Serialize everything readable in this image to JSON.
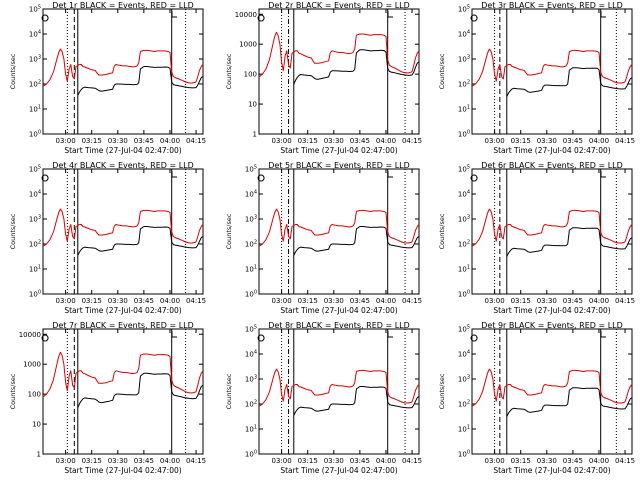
{
  "figure": {
    "xlabel": "Start Time (27-Jul-04 02:47:00)",
    "ylabel": "Counts/sec",
    "colors": {
      "events": "#000000",
      "lld": "#dd0000",
      "axes": "#000000",
      "background": "#ffffff"
    }
  },
  "chart_data": [
    {
      "type": "line",
      "title": "Det 1r BLACK = Events, RED = LLD",
      "xlabel": "Start Time (27-Jul-04 02:47:00)",
      "ylabel": "Counts/sec",
      "yscale": "log",
      "ylim": [
        1,
        100000
      ],
      "xlim_minutes_after_start": [
        0,
        92
      ],
      "yticks": [
        {
          "value": 1,
          "label": "10^0"
        },
        {
          "value": 10,
          "label": "10^1"
        },
        {
          "value": 100,
          "label": "10^2"
        },
        {
          "value": 1000,
          "label": "10^3"
        },
        {
          "value": 10000,
          "label": "10^4"
        },
        {
          "value": 100000,
          "label": "10^5"
        }
      ],
      "xticks": [
        {
          "value": 13,
          "label": "03:00"
        },
        {
          "value": 28,
          "label": "03:15"
        },
        {
          "value": 43,
          "label": "03:30"
        },
        {
          "value": 58,
          "label": "03:45"
        },
        {
          "value": 73,
          "label": "04:00"
        },
        {
          "value": 88,
          "label": "04:15"
        }
      ],
      "markers": [
        {
          "minute": 14,
          "style": "dotted"
        },
        {
          "minute": 18,
          "style": "dashed"
        },
        {
          "minute": 20,
          "style": "solid"
        },
        {
          "minute": 74,
          "style": "solid"
        },
        {
          "minute": 82,
          "style": "dotted"
        }
      ],
      "event_scale": 1
    },
    {
      "type": "line",
      "title": "Det 2r BLACK = Events, RED = LLD",
      "xlabel": "Start Time (27-Jul-04 02:47:00)",
      "ylabel": "Counts/sec",
      "yscale": "log",
      "ylim": [
        1,
        15000
      ],
      "xlim_minutes_after_start": [
        0,
        92
      ],
      "yticks": [
        {
          "value": 1,
          "label": "1"
        },
        {
          "value": 10,
          "label": "10"
        },
        {
          "value": 100,
          "label": "100"
        },
        {
          "value": 1000,
          "label": "1000"
        },
        {
          "value": 10000,
          "label": "10000"
        }
      ],
      "xticks": [
        {
          "value": 13,
          "label": "03:00"
        },
        {
          "value": 28,
          "label": "03:15"
        },
        {
          "value": 43,
          "label": "03:30"
        },
        {
          "value": 58,
          "label": "03:45"
        },
        {
          "value": 73,
          "label": "04:00"
        },
        {
          "value": 88,
          "label": "04:15"
        }
      ],
      "markers": [
        {
          "minute": 13,
          "style": "dotted"
        },
        {
          "minute": 17,
          "style": "dashdot"
        },
        {
          "minute": 20,
          "style": "solid"
        },
        {
          "minute": 74,
          "style": "solid"
        },
        {
          "minute": 84,
          "style": "dotted"
        }
      ],
      "event_scale": 1.3
    },
    {
      "type": "line",
      "title": "Det 3r BLACK = Events, RED = LLD",
      "xlabel": "Start Time (27-Jul-04 02:47:00)",
      "ylabel": "Counts/sec",
      "yscale": "log",
      "ylim": [
        1,
        100000
      ],
      "xlim_minutes_after_start": [
        0,
        92
      ],
      "yticks": [
        {
          "value": 1,
          "label": "10^0"
        },
        {
          "value": 10,
          "label": "10^1"
        },
        {
          "value": 100,
          "label": "10^2"
        },
        {
          "value": 1000,
          "label": "10^3"
        },
        {
          "value": 10000,
          "label": "10^4"
        },
        {
          "value": 100000,
          "label": "10^5"
        }
      ],
      "xticks": [
        {
          "value": 13,
          "label": "03:00"
        },
        {
          "value": 28,
          "label": "03:15"
        },
        {
          "value": 43,
          "label": "03:30"
        },
        {
          "value": 58,
          "label": "03:45"
        },
        {
          "value": 73,
          "label": "04:00"
        },
        {
          "value": 88,
          "label": "04:15"
        }
      ],
      "markers": [
        {
          "minute": 13,
          "style": "dotted"
        },
        {
          "minute": 16,
          "style": "dashed"
        },
        {
          "minute": 20,
          "style": "solid"
        },
        {
          "minute": 74,
          "style": "solid"
        },
        {
          "minute": 83,
          "style": "dotted"
        }
      ],
      "event_scale": 0.9
    },
    {
      "type": "line",
      "title": "Det 4r BLACK = Events, RED = LLD",
      "xlabel": "Start Time (27-Jul-04 02:47:00)",
      "ylabel": "Counts/sec",
      "yscale": "log",
      "ylim": [
        1,
        100000
      ],
      "xlim_minutes_after_start": [
        0,
        92
      ],
      "yticks": [
        {
          "value": 1,
          "label": "10^0"
        },
        {
          "value": 10,
          "label": "10^1"
        },
        {
          "value": 100,
          "label": "10^2"
        },
        {
          "value": 1000,
          "label": "10^3"
        },
        {
          "value": 10000,
          "label": "10^4"
        },
        {
          "value": 100000,
          "label": "10^5"
        }
      ],
      "xticks": [
        {
          "value": 13,
          "label": "03:00"
        },
        {
          "value": 28,
          "label": "03:15"
        },
        {
          "value": 43,
          "label": "03:30"
        },
        {
          "value": 58,
          "label": "03:45"
        },
        {
          "value": 73,
          "label": "04:00"
        },
        {
          "value": 88,
          "label": "04:15"
        }
      ],
      "markers": [
        {
          "minute": 14,
          "style": "dotted"
        },
        {
          "minute": 18,
          "style": "dashed"
        },
        {
          "minute": 20,
          "style": "solid"
        },
        {
          "minute": 74,
          "style": "solid"
        },
        {
          "minute": 82,
          "style": "dotted"
        }
      ],
      "event_scale": 1
    },
    {
      "type": "line",
      "title": "Det 5r BLACK = Events, RED = LLD",
      "xlabel": "Start Time (27-Jul-04 02:47:00)",
      "ylabel": "Counts/sec",
      "yscale": "log",
      "ylim": [
        1,
        100000
      ],
      "xlim_minutes_after_start": [
        0,
        92
      ],
      "yticks": [
        {
          "value": 1,
          "label": "10^0"
        },
        {
          "value": 10,
          "label": "10^1"
        },
        {
          "value": 100,
          "label": "10^2"
        },
        {
          "value": 1000,
          "label": "10^3"
        },
        {
          "value": 10000,
          "label": "10^4"
        },
        {
          "value": 100000,
          "label": "10^5"
        }
      ],
      "xticks": [
        {
          "value": 13,
          "label": "03:00"
        },
        {
          "value": 28,
          "label": "03:15"
        },
        {
          "value": 43,
          "label": "03:30"
        },
        {
          "value": 58,
          "label": "03:45"
        },
        {
          "value": 73,
          "label": "04:00"
        },
        {
          "value": 88,
          "label": "04:15"
        }
      ],
      "markers": [
        {
          "minute": 13,
          "style": "dotted"
        },
        {
          "minute": 17,
          "style": "dashdot"
        },
        {
          "minute": 20,
          "style": "solid"
        },
        {
          "minute": 74,
          "style": "solid"
        },
        {
          "minute": 84,
          "style": "dotted"
        }
      ],
      "event_scale": 1
    },
    {
      "type": "line",
      "title": "Det 6r BLACK = Events, RED = LLD",
      "xlabel": "Start Time (27-Jul-04 02:47:00)",
      "ylabel": "Counts/sec",
      "yscale": "log",
      "ylim": [
        1,
        100000
      ],
      "xlim_minutes_after_start": [
        0,
        92
      ],
      "yticks": [
        {
          "value": 1,
          "label": "10^0"
        },
        {
          "value": 10,
          "label": "10^1"
        },
        {
          "value": 100,
          "label": "10^2"
        },
        {
          "value": 1000,
          "label": "10^3"
        },
        {
          "value": 10000,
          "label": "10^4"
        },
        {
          "value": 100000,
          "label": "10^5"
        }
      ],
      "xticks": [
        {
          "value": 13,
          "label": "03:00"
        },
        {
          "value": 28,
          "label": "03:15"
        },
        {
          "value": 43,
          "label": "03:30"
        },
        {
          "value": 58,
          "label": "03:45"
        },
        {
          "value": 73,
          "label": "04:00"
        },
        {
          "value": 88,
          "label": "04:15"
        }
      ],
      "markers": [
        {
          "minute": 13,
          "style": "dotted"
        },
        {
          "minute": 16,
          "style": "dashed"
        },
        {
          "minute": 20,
          "style": "solid"
        },
        {
          "minute": 74,
          "style": "solid"
        },
        {
          "minute": 83,
          "style": "dotted"
        }
      ],
      "event_scale": 0.9
    },
    {
      "type": "line",
      "title": "Det 7r BLACK = Events, RED = LLD",
      "xlabel": "Start Time (27-Jul-04 02:47:00)",
      "ylabel": "Counts/sec",
      "yscale": "log",
      "ylim": [
        1,
        15000
      ],
      "xlim_minutes_after_start": [
        0,
        92
      ],
      "yticks": [
        {
          "value": 1,
          "label": "1"
        },
        {
          "value": 10,
          "label": "10"
        },
        {
          "value": 100,
          "label": "100"
        },
        {
          "value": 1000,
          "label": "1000"
        },
        {
          "value": 10000,
          "label": "10000"
        }
      ],
      "xticks": [
        {
          "value": 13,
          "label": "03:00"
        },
        {
          "value": 28,
          "label": "03:15"
        },
        {
          "value": 43,
          "label": "03:30"
        },
        {
          "value": 58,
          "label": "03:45"
        },
        {
          "value": 73,
          "label": "04:00"
        },
        {
          "value": 88,
          "label": "04:15"
        }
      ],
      "markers": [
        {
          "minute": 14,
          "style": "dotted"
        },
        {
          "minute": 18,
          "style": "dashed"
        },
        {
          "minute": 20,
          "style": "solid"
        },
        {
          "minute": 74,
          "style": "solid"
        },
        {
          "minute": 82,
          "style": "dotted"
        }
      ],
      "event_scale": 1
    },
    {
      "type": "line",
      "title": "Det 8r BLACK = Events, RED = LLD",
      "xlabel": "Start Time (27-Jul-04 02:47:00)",
      "ylabel": "Counts/sec",
      "yscale": "log",
      "ylim": [
        1,
        100000
      ],
      "xlim_minutes_after_start": [
        0,
        92
      ],
      "yticks": [
        {
          "value": 1,
          "label": "10^0"
        },
        {
          "value": 10,
          "label": "10^1"
        },
        {
          "value": 100,
          "label": "10^2"
        },
        {
          "value": 1000,
          "label": "10^3"
        },
        {
          "value": 10000,
          "label": "10^4"
        },
        {
          "value": 100000,
          "label": "10^5"
        }
      ],
      "xticks": [
        {
          "value": 13,
          "label": "03:00"
        },
        {
          "value": 28,
          "label": "03:15"
        },
        {
          "value": 43,
          "label": "03:30"
        },
        {
          "value": 58,
          "label": "03:45"
        },
        {
          "value": 73,
          "label": "04:00"
        },
        {
          "value": 88,
          "label": "04:15"
        }
      ],
      "markers": [
        {
          "minute": 13,
          "style": "dotted"
        },
        {
          "minute": 17,
          "style": "dashdot"
        },
        {
          "minute": 20,
          "style": "solid"
        },
        {
          "minute": 74,
          "style": "solid"
        },
        {
          "minute": 84,
          "style": "dotted"
        }
      ],
      "event_scale": 1
    },
    {
      "type": "line",
      "title": "Det 9r BLACK = Events, RED = LLD",
      "xlabel": "Start Time (27-Jul-04 02:47:00)",
      "ylabel": "Counts/sec",
      "yscale": "log",
      "ylim": [
        1,
        100000
      ],
      "xlim_minutes_after_start": [
        0,
        92
      ],
      "yticks": [
        {
          "value": 1,
          "label": "10^0"
        },
        {
          "value": 10,
          "label": "10^1"
        },
        {
          "value": 100,
          "label": "10^2"
        },
        {
          "value": 1000,
          "label": "10^3"
        },
        {
          "value": 10000,
          "label": "10^4"
        },
        {
          "value": 100000,
          "label": "10^5"
        }
      ],
      "xticks": [
        {
          "value": 13,
          "label": "03:00"
        },
        {
          "value": 28,
          "label": "03:15"
        },
        {
          "value": 43,
          "label": "03:30"
        },
        {
          "value": 58,
          "label": "03:45"
        },
        {
          "value": 73,
          "label": "04:00"
        },
        {
          "value": 88,
          "label": "04:15"
        }
      ],
      "markers": [
        {
          "minute": 13,
          "style": "dotted"
        },
        {
          "minute": 16,
          "style": "dashed"
        },
        {
          "minute": 20,
          "style": "solid"
        },
        {
          "minute": 74,
          "style": "solid"
        },
        {
          "minute": 83,
          "style": "dotted"
        }
      ],
      "event_scale": 0.9
    }
  ],
  "series_template": {
    "x": [
      0,
      2,
      4,
      6,
      8,
      9,
      10,
      11,
      12,
      13,
      14,
      15,
      16,
      17,
      18,
      19,
      20,
      21,
      22,
      23,
      24,
      26,
      28,
      30,
      31,
      32,
      33,
      34,
      36,
      38,
      40,
      41,
      42,
      44,
      46,
      48,
      50,
      52,
      54,
      55,
      56,
      58,
      60,
      62,
      64,
      66,
      68,
      70,
      72,
      73,
      74,
      75,
      76,
      78,
      80,
      82,
      84,
      86,
      88,
      89,
      90,
      91,
      92
    ],
    "lld": [
      80,
      100,
      150,
      300,
      1000,
      1800,
      2500,
      2000,
      1000,
      250,
      130,
      400,
      600,
      200,
      160,
      500,
      550,
      600,
      600,
      500,
      480,
      420,
      370,
      350,
      280,
      230,
      230,
      230,
      240,
      260,
      280,
      520,
      600,
      560,
      530,
      530,
      500,
      480,
      520,
      700,
      2000,
      2200,
      2200,
      2100,
      2000,
      2100,
      2100,
      2100,
      2000,
      1800,
      300,
      200,
      180,
      160,
      140,
      120,
      110,
      110,
      120,
      200,
      350,
      500,
      600
    ],
    "events": [
      null,
      null,
      null,
      null,
      null,
      null,
      null,
      null,
      null,
      null,
      null,
      null,
      null,
      null,
      null,
      null,
      35,
      48,
      60,
      70,
      75,
      72,
      70,
      68,
      62,
      55,
      52,
      52,
      55,
      58,
      62,
      90,
      100,
      100,
      98,
      96,
      96,
      94,
      96,
      110,
      400,
      500,
      500,
      480,
      460,
      470,
      470,
      480,
      470,
      420,
      120,
      95,
      90,
      85,
      80,
      75,
      72,
      70,
      72,
      90,
      130,
      180,
      200
    ]
  }
}
